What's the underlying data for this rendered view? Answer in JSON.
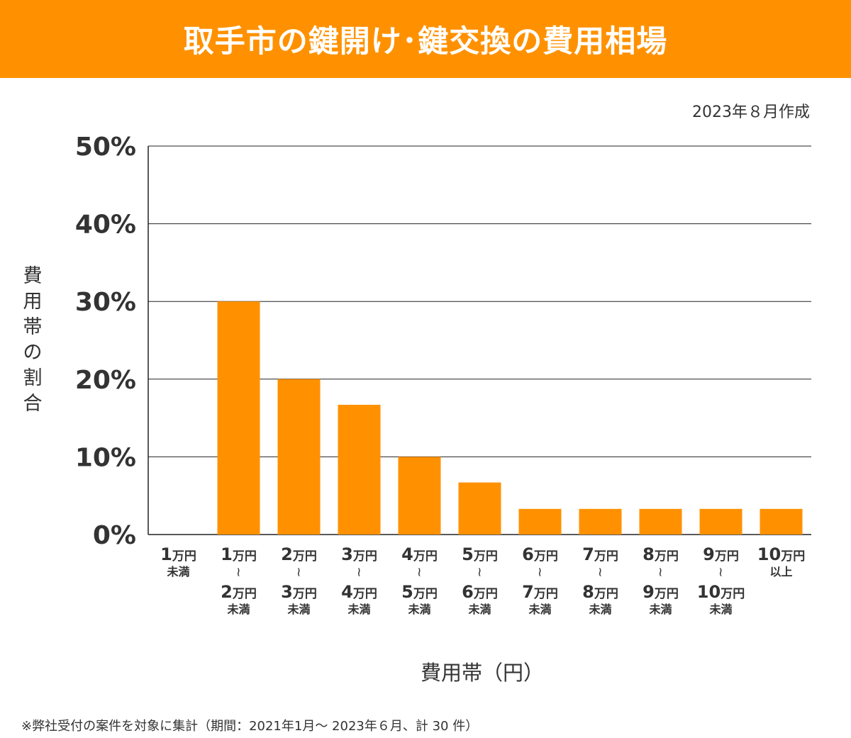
{
  "colors": {
    "accent": "#FF9100",
    "text": "#333333",
    "grid": "#222222"
  },
  "header": {
    "title": "取手市の鍵開け･鍵交換の費用相場"
  },
  "created_date": "2023年８月作成",
  "footnote": "※弊社受付の案件を対象に集計（期間：2021年1月～ 2023年６月、計 30 件）",
  "chart_data": {
    "type": "bar",
    "ylabel": "費用帯の割合",
    "xlabel": "費用帯（円）",
    "ylim": [
      0,
      50
    ],
    "yticks": [
      "0%",
      "10%",
      "20%",
      "30%",
      "40%",
      "50%"
    ],
    "grid": true,
    "categories": [
      [
        "1万円",
        "未満"
      ],
      [
        "1万円",
        "〜",
        "2万円",
        "未満"
      ],
      [
        "2万円",
        "〜",
        "3万円",
        "未満"
      ],
      [
        "3万円",
        "〜",
        "4万円",
        "未満"
      ],
      [
        "4万円",
        "〜",
        "5万円",
        "未満"
      ],
      [
        "5万円",
        "〜",
        "6万円",
        "未満"
      ],
      [
        "6万円",
        "〜",
        "7万円",
        "未満"
      ],
      [
        "7万円",
        "〜",
        "8万円",
        "未満"
      ],
      [
        "8万円",
        "〜",
        "9万円",
        "未満"
      ],
      [
        "9万円",
        "〜",
        "10万円",
        "未満"
      ],
      [
        "10万円",
        "以上"
      ]
    ],
    "values": [
      0,
      30,
      20,
      16.7,
      10,
      6.7,
      3.3,
      3.3,
      3.3,
      3.3,
      3.3
    ]
  }
}
